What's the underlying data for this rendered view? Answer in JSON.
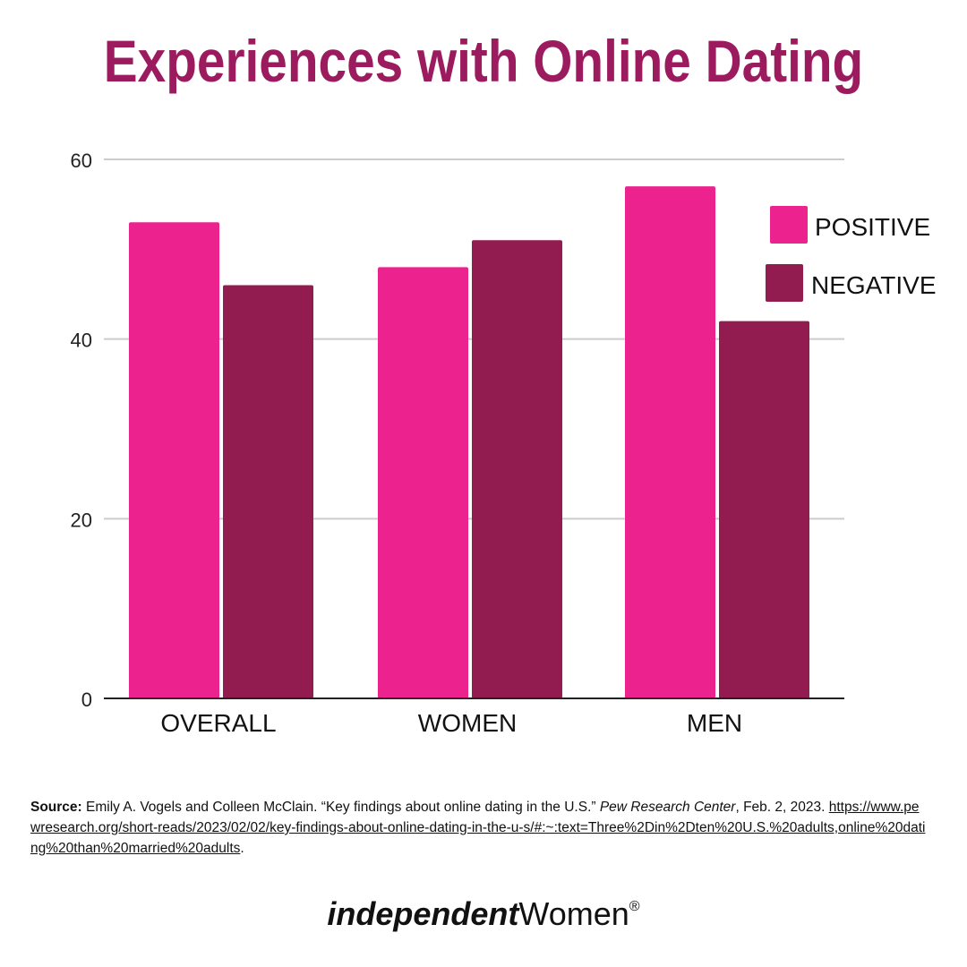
{
  "title": "Experiences with Online Dating",
  "colors": {
    "title": "#9b1b5e",
    "positive": "#ec238e",
    "negative": "#921c4f",
    "grid": "#cccccc",
    "axis": "#222222"
  },
  "chart_data": {
    "type": "bar",
    "title": "Experiences with Online Dating",
    "categories": [
      "OVERALL",
      "WOMEN",
      "MEN"
    ],
    "series": [
      {
        "name": "POSITIVE",
        "values": [
          53,
          48,
          57
        ]
      },
      {
        "name": "NEGATIVE",
        "values": [
          46,
          51,
          42
        ]
      }
    ],
    "ylim": [
      0,
      60
    ],
    "yticks": [
      "0",
      "20",
      "40",
      "60"
    ],
    "grid": true,
    "legend": "top-right",
    "xlabel": "",
    "ylabel": ""
  },
  "source": {
    "label": "Source:",
    "text1": " Emily A. Vogels and Colleen McClain. “Key findings about online dating in the U.S.” ",
    "publication": "Pew Research Center",
    "text2": ", Feb. 2, 2023. ",
    "url": "https://www.pewresearch.org/short-reads/2023/02/02/key-findings-about-online-dating-in-the-u-s/#:~:text=Three%2Din%2Dten%20U.S.%20adults,online%20dating%20than%20married%20adults",
    "end": "."
  },
  "logo": {
    "part1": "independent",
    "part2": "Women",
    "mark": "®"
  }
}
